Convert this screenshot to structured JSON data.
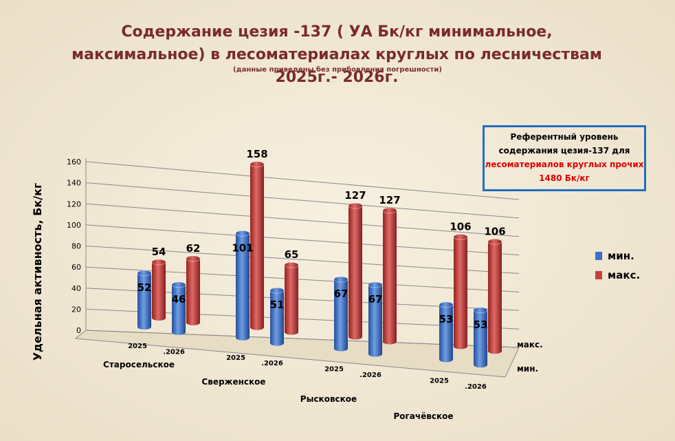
{
  "chart_data": {
    "type": "bar",
    "title": "Содержание цезия -137 ( УА Бк/кг минимальное, максимальное) в лесоматериалах круглых по лесничествам  2025г.- 2026г.",
    "subtitle": "(данные приведены  без прибовления  погрешности)",
    "y_label": "Удельная  активность,  Бк/кг",
    "annotation": [
      "Референтный уровень содержания  цезия-137 для",
      "лесоматериалов круглых прочих  1480 Бк/кг"
    ],
    "categories": [
      "2025",
      ".2026",
      "2025",
      ".2026",
      "2025",
      ".2026",
      "2025",
      ".2026"
    ],
    "groups": [
      "Старосельское",
      "Сверженское",
      "Рысковское",
      "Рогачёвское"
    ],
    "series": [
      {
        "name": "мин.",
        "color": "#3a6fc4",
        "values": [
          52,
          46,
          101,
          51,
          67,
          67,
          53,
          53
        ]
      },
      {
        "name": "макс.",
        "color": "#c8403d",
        "values": [
          54,
          62,
          158,
          65,
          127,
          127,
          106,
          106
        ]
      }
    ],
    "ylim": [
      0,
      160
    ],
    "yticks": [
      0,
      20,
      40,
      60,
      80,
      100,
      120,
      140,
      160
    ],
    "grid": true,
    "legend": "right"
  }
}
